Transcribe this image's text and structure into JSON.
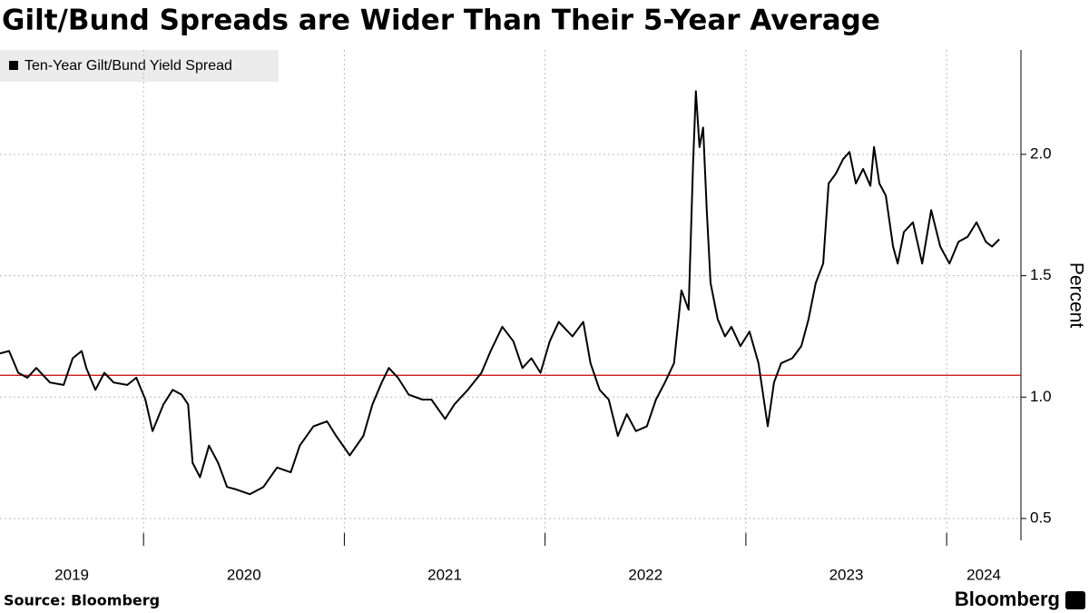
{
  "chart_data": {
    "type": "line",
    "title": "Gilt/Bund Spreads are Wider Than Their 5-Year Average",
    "y_axis_label": "Percent",
    "source": "Source: Bloomberg",
    "brand": "Bloomberg",
    "legend_position": "top-left",
    "grid": true,
    "xlim": [
      2019.285,
      2024.37
    ],
    "xticks": [
      2019,
      2020,
      2021,
      2022,
      2023,
      2024
    ],
    "ylim": [
      0.41,
      2.43
    ],
    "yticks": [
      {
        "value": 0.5,
        "label": "0.5"
      },
      {
        "value": 1.0,
        "label": "1.0"
      },
      {
        "value": 1.5,
        "label": "1.5"
      },
      {
        "value": 2.0,
        "label": "2.0"
      }
    ],
    "reference_line": {
      "value": 1.09,
      "color": "#cc0000"
    },
    "series": [
      {
        "name": "Ten-Year Gilt/Bund Yield Spread",
        "color": "#000000",
        "x": [
          2019.285,
          2019.33,
          2019.376,
          2019.421,
          2019.466,
          2019.534,
          2019.602,
          2019.647,
          2019.692,
          2019.715,
          2019.76,
          2019.805,
          2019.851,
          2019.919,
          2019.964,
          2020.009,
          2020.045,
          2020.099,
          2020.145,
          2020.19,
          2020.222,
          2020.244,
          2020.281,
          2020.326,
          2020.371,
          2020.416,
          2020.461,
          2020.529,
          2020.597,
          2020.665,
          2020.733,
          2020.778,
          2020.846,
          2020.914,
          2020.959,
          2021.027,
          2021.095,
          2021.14,
          2021.186,
          2021.222,
          2021.267,
          2021.321,
          2021.389,
          2021.434,
          2021.502,
          2021.548,
          2021.615,
          2021.683,
          2021.729,
          2021.787,
          2021.842,
          2021.887,
          2021.932,
          2021.977,
          2022.023,
          2022.068,
          2022.136,
          2022.19,
          2022.226,
          2022.272,
          2022.317,
          2022.362,
          2022.407,
          2022.452,
          2022.507,
          2022.552,
          2022.597,
          2022.642,
          2022.679,
          2022.715,
          2022.737,
          2022.751,
          2022.769,
          2022.787,
          2022.805,
          2022.824,
          2022.86,
          2022.896,
          2022.928,
          2022.973,
          2023.018,
          2023.063,
          2023.109,
          2023.14,
          2023.176,
          2023.231,
          2023.276,
          2023.312,
          2023.348,
          2023.385,
          2023.412,
          2023.448,
          2023.484,
          2023.516,
          2023.548,
          2023.584,
          2023.62,
          2023.638,
          2023.665,
          2023.697,
          2023.733,
          2023.756,
          2023.787,
          2023.832,
          2023.878,
          2023.923,
          2023.968,
          2024.014,
          2024.059,
          2024.104,
          2024.149,
          2024.195,
          2024.226,
          2024.262
        ],
        "values": [
          1.18,
          1.19,
          1.1,
          1.08,
          1.12,
          1.06,
          1.05,
          1.16,
          1.19,
          1.12,
          1.03,
          1.1,
          1.06,
          1.05,
          1.08,
          0.99,
          0.86,
          0.97,
          1.03,
          1.01,
          0.97,
          0.73,
          0.67,
          0.8,
          0.73,
          0.63,
          0.62,
          0.6,
          0.63,
          0.71,
          0.69,
          0.8,
          0.88,
          0.9,
          0.84,
          0.76,
          0.84,
          0.97,
          1.06,
          1.12,
          1.08,
          1.01,
          0.99,
          0.99,
          0.91,
          0.97,
          1.03,
          1.1,
          1.19,
          1.29,
          1.23,
          1.12,
          1.16,
          1.1,
          1.23,
          1.31,
          1.25,
          1.31,
          1.14,
          1.03,
          0.99,
          0.84,
          0.93,
          0.86,
          0.88,
          0.99,
          1.06,
          1.14,
          1.44,
          1.36,
          1.96,
          2.26,
          2.03,
          2.11,
          1.77,
          1.47,
          1.32,
          1.25,
          1.29,
          1.21,
          1.27,
          1.14,
          0.88,
          1.06,
          1.14,
          1.16,
          1.21,
          1.32,
          1.47,
          1.55,
          1.88,
          1.92,
          1.98,
          2.01,
          1.88,
          1.94,
          1.87,
          2.03,
          1.88,
          1.83,
          1.62,
          1.55,
          1.68,
          1.72,
          1.55,
          1.77,
          1.62,
          1.55,
          1.64,
          1.66,
          1.72,
          1.64,
          1.62,
          1.65
        ]
      }
    ]
  }
}
